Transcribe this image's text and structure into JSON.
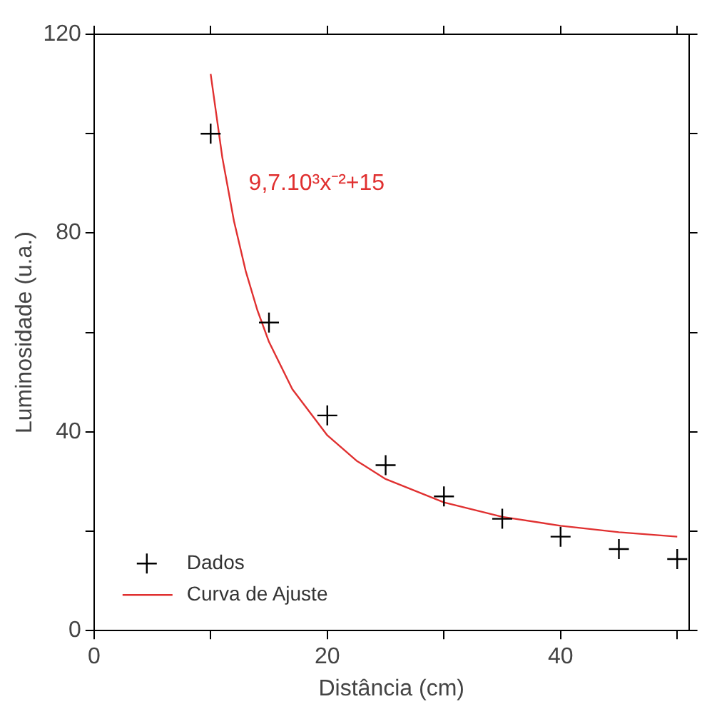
{
  "chart_data": {
    "type": "scatter",
    "xlabel": "Distância (cm)",
    "ylabel": "Luminosidade (u.a.)",
    "annotations": [
      "9,7.10³x⁻²+15"
    ],
    "series": [
      {
        "name": "Dados",
        "color": "#000000",
        "marker": "cross",
        "x": [
          10,
          15,
          20,
          25,
          30,
          35,
          40,
          45,
          50
        ],
        "values": [
          100,
          62,
          43.3,
          33.3,
          27,
          22.5,
          18.9,
          16.4,
          14.4
        ]
      },
      {
        "name": "Curva de Ajuste",
        "type": "line",
        "color": "#e03030",
        "marker": "none",
        "line_style": "solid",
        "x": [
          10,
          11,
          12,
          13,
          14,
          15,
          17,
          20,
          22.5,
          25,
          30,
          35,
          40,
          45,
          50
        ],
        "values": [
          112,
          95.2,
          82.4,
          72.4,
          64.5,
          58.1,
          48.6,
          39.3,
          34.2,
          30.5,
          25.8,
          22.9,
          21.1,
          19.8,
          18.9
        ]
      }
    ],
    "xlim": [
      0,
      51
    ],
    "xticks": [
      0,
      {
        "value": 10,
        "label": null
      },
      20,
      {
        "value": 30,
        "label": null
      },
      40,
      {
        "value": 50,
        "label": null
      }
    ],
    "ylim": [
      0,
      120
    ],
    "yticks": [
      0,
      {
        "value": 20,
        "label": null
      },
      40,
      {
        "value": 60,
        "label": null
      },
      80,
      {
        "value": 100,
        "label": null
      },
      120
    ],
    "grid": false,
    "legend": "bottom left"
  }
}
